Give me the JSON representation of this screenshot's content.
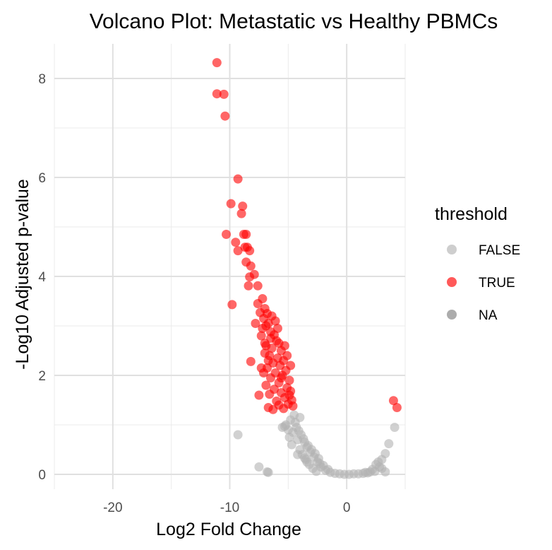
{
  "chart_data": {
    "type": "scatter",
    "title": "Volcano Plot: Metastatic vs Healthy PBMCs",
    "xlabel": "Log2 Fold Change",
    "ylabel": "-Log10 Adjusted p-value",
    "xlim": [
      -25,
      5
    ],
    "ylim": [
      -0.3,
      8.7
    ],
    "x_ticks": [
      -20,
      -10,
      0
    ],
    "y_ticks": [
      0,
      2,
      4,
      6,
      8
    ],
    "grid": true,
    "legend": {
      "title": "threshold",
      "placement": "right",
      "entries": [
        {
          "label": "FALSE",
          "color": "#b3b3b3"
        },
        {
          "label": "TRUE",
          "color": "#ff0000"
        },
        {
          "label": "NA",
          "color": "#808080"
        }
      ]
    },
    "series": [
      {
        "name": "TRUE",
        "color": "#ff0000",
        "points": [
          [
            -11.1,
            8.32
          ],
          [
            -11.1,
            7.69
          ],
          [
            -10.5,
            7.68
          ],
          [
            -10.4,
            7.24
          ],
          [
            -9.3,
            5.97
          ],
          [
            -9.9,
            5.47
          ],
          [
            -8.9,
            5.42
          ],
          [
            -9.0,
            5.27
          ],
          [
            -10.3,
            4.85
          ],
          [
            -8.6,
            4.85
          ],
          [
            -8.8,
            4.85
          ],
          [
            -9.5,
            4.69
          ],
          [
            -8.3,
            4.52
          ],
          [
            -9.3,
            4.52
          ],
          [
            -8.7,
            4.59
          ],
          [
            -8.5,
            4.59
          ],
          [
            -8.6,
            4.29
          ],
          [
            -8.2,
            4.21
          ],
          [
            -7.9,
            4.04
          ],
          [
            -8.3,
            3.99
          ],
          [
            -7.6,
            3.81
          ],
          [
            -8.4,
            3.81
          ],
          [
            -7.2,
            3.55
          ],
          [
            -7.6,
            3.45
          ],
          [
            -9.8,
            3.43
          ],
          [
            -7.0,
            3.35
          ],
          [
            -6.8,
            3.25
          ],
          [
            -7.4,
            3.27
          ],
          [
            -7.1,
            3.15
          ],
          [
            -6.7,
            3.05
          ],
          [
            -7.2,
            2.95
          ],
          [
            -6.5,
            2.88
          ],
          [
            -6.2,
            2.82
          ],
          [
            -7.3,
            2.8
          ],
          [
            -6.0,
            2.7
          ],
          [
            -5.8,
            2.65
          ],
          [
            -6.9,
            2.6
          ],
          [
            -6.4,
            2.55
          ],
          [
            -5.6,
            2.5
          ],
          [
            -7.0,
            2.45
          ],
          [
            -6.6,
            2.4
          ],
          [
            -5.9,
            2.35
          ],
          [
            -5.4,
            2.3
          ],
          [
            -8.2,
            2.28
          ],
          [
            -6.3,
            2.25
          ],
          [
            -5.7,
            2.2
          ],
          [
            -6.8,
            2.15
          ],
          [
            -5.2,
            2.1
          ],
          [
            -6.1,
            2.05
          ],
          [
            -7.1,
            2.05
          ],
          [
            -5.5,
            2.0
          ],
          [
            -6.5,
            1.95
          ],
          [
            -4.9,
            1.9
          ],
          [
            -5.8,
            1.85
          ],
          [
            -6.9,
            1.8
          ],
          [
            -5.1,
            1.75
          ],
          [
            -6.2,
            1.72
          ],
          [
            -4.8,
            1.68
          ],
          [
            -5.6,
            1.65
          ],
          [
            -6.6,
            1.62
          ],
          [
            -7.5,
            1.6
          ],
          [
            -5.3,
            1.55
          ],
          [
            -4.7,
            1.5
          ],
          [
            -6.0,
            1.48
          ],
          [
            -5.0,
            1.42
          ],
          [
            -5.8,
            1.4
          ],
          [
            -6.7,
            1.35
          ],
          [
            -4.6,
            1.38
          ],
          [
            -5.4,
            1.33
          ],
          [
            -6.3,
            1.31
          ],
          [
            -6.5,
            2.75
          ],
          [
            -6.1,
            3.1
          ],
          [
            -5.9,
            2.95
          ],
          [
            -6.4,
            3.2
          ],
          [
            -7.8,
            3.05
          ],
          [
            -5.3,
            2.6
          ],
          [
            -5.1,
            2.4
          ],
          [
            -6.7,
            2.3
          ],
          [
            -7.0,
            2.65
          ],
          [
            -4.8,
            2.2
          ],
          [
            -5.6,
            1.95
          ],
          [
            -4.9,
            1.6
          ],
          [
            -7.3,
            2.15
          ],
          [
            -6.9,
            3.0
          ],
          [
            4.0,
            1.49
          ],
          [
            4.3,
            1.35
          ]
        ]
      },
      {
        "name": "FALSE",
        "color": "#b3b3b3",
        "points": [
          [
            -9.3,
            0.8
          ],
          [
            -7.5,
            0.15
          ],
          [
            -6.8,
            0.05
          ],
          [
            -6.7,
            0.04
          ],
          [
            -4.5,
            1.2
          ],
          [
            -4.8,
            1.1
          ],
          [
            -5.2,
            1.0
          ],
          [
            -4.3,
            0.95
          ],
          [
            -5.0,
            0.9
          ],
          [
            -4.6,
            0.85
          ],
          [
            -3.9,
            0.8
          ],
          [
            -4.9,
            0.75
          ],
          [
            -4.2,
            0.7
          ],
          [
            -3.6,
            0.65
          ],
          [
            -4.7,
            0.6
          ],
          [
            -3.4,
            0.55
          ],
          [
            -4.0,
            0.5
          ],
          [
            -3.1,
            0.45
          ],
          [
            -3.8,
            0.4
          ],
          [
            -2.8,
            0.35
          ],
          [
            -3.5,
            0.3
          ],
          [
            -2.5,
            0.25
          ],
          [
            -3.2,
            0.2
          ],
          [
            -2.2,
            0.15
          ],
          [
            -2.9,
            0.12
          ],
          [
            -1.8,
            0.08
          ],
          [
            -2.6,
            0.06
          ],
          [
            -1.4,
            0.04
          ],
          [
            -1.0,
            0.02
          ],
          [
            -0.6,
            0.01
          ],
          [
            -0.2,
            0.0
          ],
          [
            0.2,
            0.0
          ],
          [
            0.6,
            0.01
          ],
          [
            1.0,
            0.01
          ],
          [
            1.4,
            0.02
          ],
          [
            1.8,
            0.03
          ],
          [
            2.2,
            0.1
          ],
          [
            2.5,
            0.2
          ],
          [
            2.7,
            0.25
          ],
          [
            3.0,
            0.3
          ],
          [
            3.3,
            0.42
          ],
          [
            3.6,
            0.62
          ],
          [
            4.1,
            0.95
          ],
          [
            2.0,
            0.05
          ],
          [
            3.0,
            0.12
          ],
          [
            -4.4,
            1.05
          ],
          [
            -3.7,
            0.72
          ],
          [
            -4.1,
            0.88
          ],
          [
            -3.3,
            0.58
          ],
          [
            -2.7,
            0.42
          ],
          [
            -5.3,
            0.97
          ],
          [
            -4.0,
            1.15
          ],
          [
            -3.0,
            0.5
          ],
          [
            -2.4,
            0.32
          ],
          [
            -3.6,
            0.33
          ],
          [
            -2.0,
            0.18
          ],
          [
            -1.6,
            0.1
          ],
          [
            -2.3,
            0.22
          ],
          [
            -5.5,
            0.95
          ],
          [
            -4.2,
            0.4
          ],
          [
            -3.4,
            0.25
          ],
          [
            1.6,
            0.04
          ],
          [
            2.4,
            0.06
          ],
          [
            2.8,
            0.15
          ],
          [
            3.3,
            0.05
          ]
        ]
      }
    ]
  }
}
